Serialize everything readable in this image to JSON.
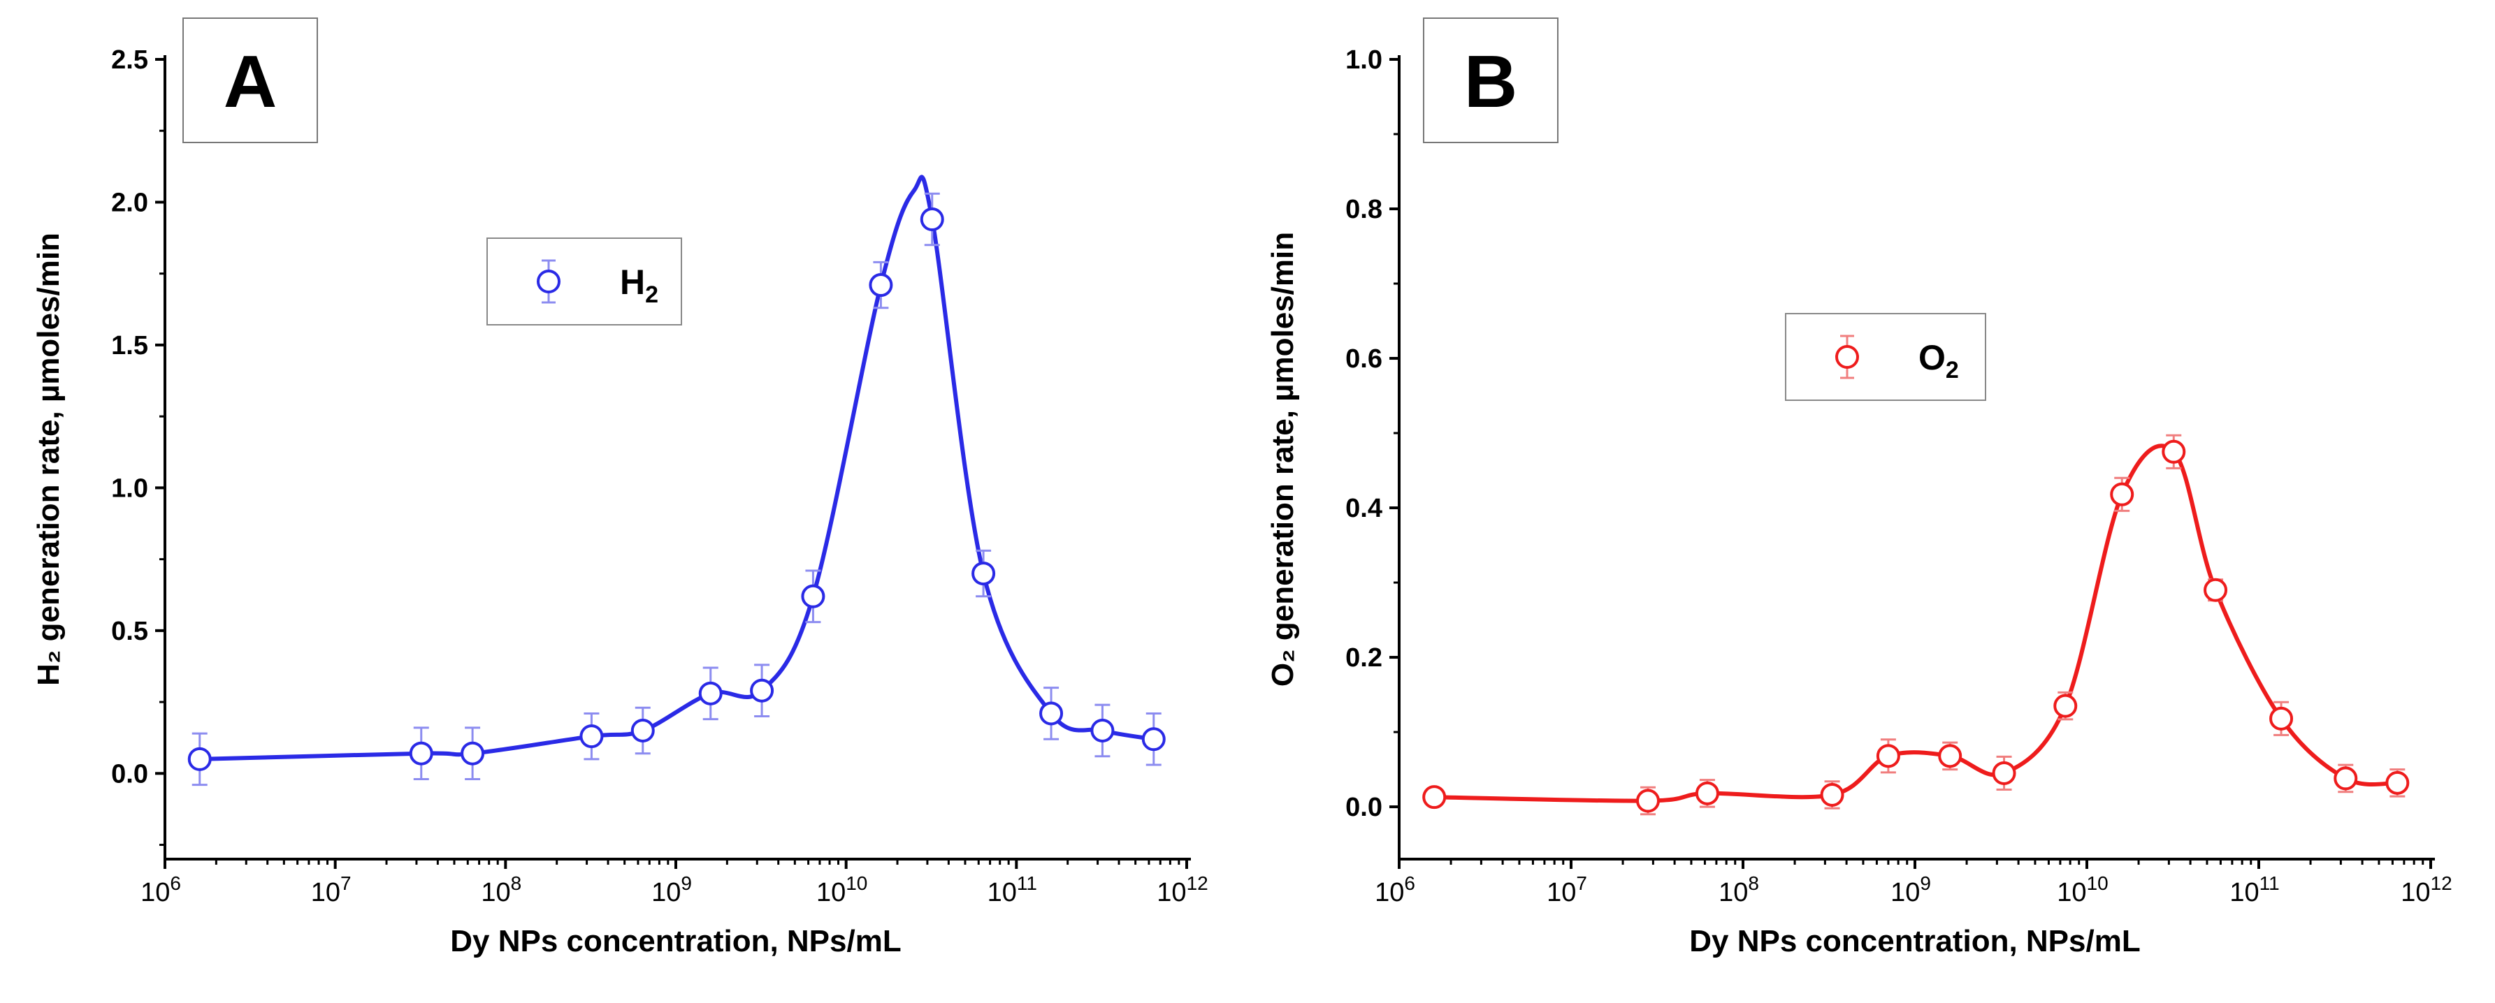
{
  "colors": {
    "panel_a": "#2a2ae6",
    "panel_b": "#ee1c1c",
    "axis": "#000000"
  },
  "chart_data": [
    {
      "type": "line",
      "panel_label": "A",
      "title": "",
      "xlabel": "Dy NPs concentration, NPs/mL",
      "ylabel": "H₂ generation rate, µmoles/min",
      "xscale": "log",
      "xlim": [
        1000000,
        1000000000000
      ],
      "ylim": [
        -0.3,
        2.5
      ],
      "x_ticks": [
        {
          "base": "10",
          "exp": "6"
        },
        {
          "base": "10",
          "exp": "7"
        },
        {
          "base": "10",
          "exp": "8"
        },
        {
          "base": "10",
          "exp": "9"
        },
        {
          "base": "10",
          "exp": "10"
        },
        {
          "base": "10",
          "exp": "11"
        },
        {
          "base": "10",
          "exp": "12"
        }
      ],
      "y_ticks": [
        "0.0",
        "0.5",
        "1.0",
        "1.5",
        "2.0",
        "2.5"
      ],
      "legend": {
        "text": "H",
        "sub": "2",
        "position": "top-center"
      },
      "series": [
        {
          "name": "H2",
          "x": [
            1600000.0,
            32000000.0,
            64000000.0,
            320000000.0,
            640000000.0,
            1600000000.0,
            3200000000.0,
            6400000000.0,
            16000000000.0,
            32000000000.0,
            64000000000.0,
            160000000000.0,
            320000000000.0,
            640000000000.0
          ],
          "y": [
            0.05,
            0.07,
            0.07,
            0.13,
            0.15,
            0.28,
            0.29,
            0.62,
            1.71,
            1.94,
            0.7,
            0.21,
            0.15,
            0.12
          ],
          "err": [
            0.09,
            0.09,
            0.09,
            0.08,
            0.08,
            0.09,
            0.09,
            0.09,
            0.08,
            0.09,
            0.08,
            0.09,
            0.09,
            0.09
          ],
          "curve_peak": {
            "x": 25000000000.0,
            "y": 2.04
          }
        }
      ]
    },
    {
      "type": "line",
      "panel_label": "B",
      "title": "",
      "xlabel": "Dy NPs concentration, NPs/mL",
      "ylabel": "O₂ generation rate, µmoles/min",
      "xscale": "log",
      "xlim": [
        1000000,
        1000000000000
      ],
      "ylim": [
        -0.07,
        1.0
      ],
      "x_ticks": [
        {
          "base": "10",
          "exp": "6"
        },
        {
          "base": "10",
          "exp": "7"
        },
        {
          "base": "10",
          "exp": "8"
        },
        {
          "base": "10",
          "exp": "9"
        },
        {
          "base": "10",
          "exp": "10"
        },
        {
          "base": "10",
          "exp": "11"
        },
        {
          "base": "10",
          "exp": "12"
        }
      ],
      "y_ticks": [
        "0.0",
        "0.2",
        "0.4",
        "0.6",
        "0.8",
        "1.0"
      ],
      "legend": {
        "text": "O",
        "sub": "2",
        "position": "center"
      },
      "series": [
        {
          "name": "O2",
          "x": [
            1600000.0,
            28000000.0,
            62000000.0,
            330000000.0,
            700000000.0,
            1600000000.0,
            3300000000.0,
            7500000000.0,
            16000000000.0,
            32000000000.0,
            56000000000.0,
            135000000000.0,
            320000000000.0,
            640000000000.0
          ],
          "y": [
            0.013,
            0.008,
            0.018,
            0.016,
            0.068,
            0.068,
            0.045,
            0.135,
            0.418,
            0.475,
            0.29,
            0.118,
            0.038,
            0.032
          ],
          "err": [
            0.008,
            0.018,
            0.018,
            0.018,
            0.022,
            0.018,
            0.022,
            0.018,
            0.022,
            0.022,
            0.014,
            0.022,
            0.018,
            0.018
          ]
        }
      ]
    }
  ]
}
